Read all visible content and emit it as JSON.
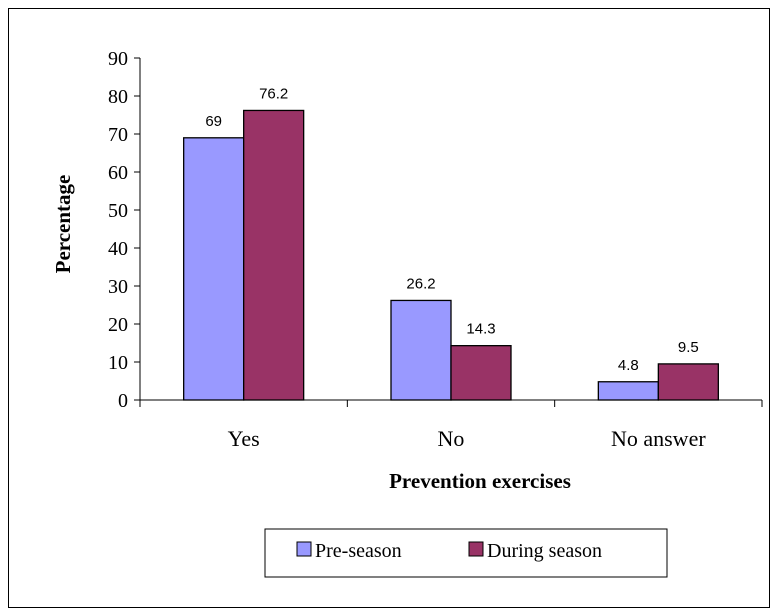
{
  "chart_data": {
    "type": "bar",
    "categories": [
      "Yes",
      "No",
      "No answer"
    ],
    "series": [
      {
        "name": "Pre-season",
        "values": [
          69,
          26.2,
          4.8
        ],
        "color": "#9999ff"
      },
      {
        "name": "During season",
        "values": [
          76.2,
          14.3,
          9.5
        ],
        "color": "#993366"
      }
    ],
    "data_labels": [
      [
        "69",
        "26.2",
        "4.8"
      ],
      [
        "76.2",
        "14.3",
        "9.5"
      ]
    ],
    "title": "",
    "xlabel": "Prevention exercises",
    "ylabel": "Percentage",
    "ylim": [
      0,
      90
    ],
    "yticks": [
      0,
      10,
      20,
      30,
      40,
      50,
      60,
      70,
      80,
      90
    ],
    "grid": false,
    "legend_position": "bottom"
  }
}
